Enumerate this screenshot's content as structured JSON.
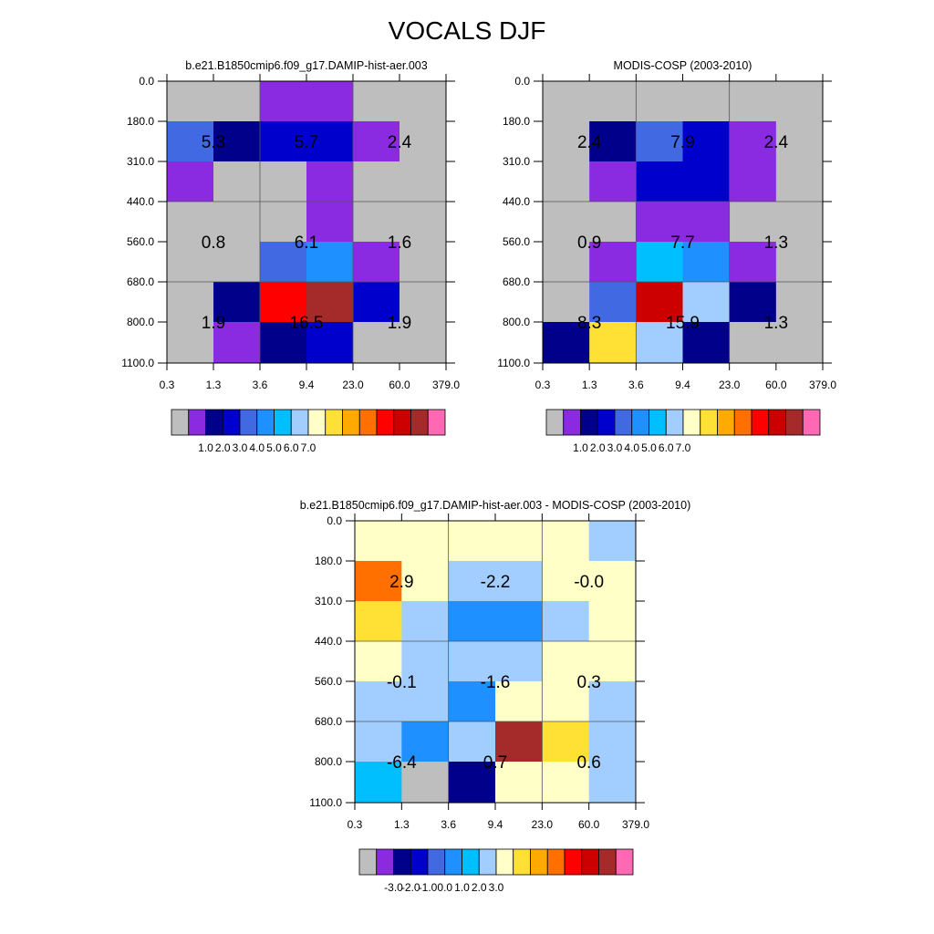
{
  "title": "VOCALS DJF",
  "chart_data": [
    {
      "type": "heatmap",
      "title": "b.e21.B1850cmip6.f09_g17.DAMIP-hist-aer.003",
      "xlabel": "",
      "ylabel": "",
      "x_ticks": [
        "0.3",
        "1.3",
        "3.6",
        "9.4",
        "23.0",
        "60.0",
        "379.0"
      ],
      "y_ticks": [
        "0.0",
        "180.0",
        "310.0",
        "440.0",
        "560.0",
        "680.0",
        "800.0",
        "1100.0"
      ],
      "cells": [
        [
          "#bebebe",
          "#bebebe",
          "#8a2be2",
          "#8a2be2",
          "#bebebe",
          "#bebebe"
        ],
        [
          "#4169e1",
          "#00008b",
          "#0000cd",
          "#0000cd",
          "#8a2be2",
          "#bebebe"
        ],
        [
          "#8a2be2",
          "#bebebe",
          "#bebebe",
          "#8a2be2",
          "#bebebe",
          "#bebebe"
        ],
        [
          "#bebebe",
          "#bebebe",
          "#bebebe",
          "#8a2be2",
          "#bebebe",
          "#bebebe"
        ],
        [
          "#bebebe",
          "#bebebe",
          "#4169e1",
          "#1e90ff",
          "#8a2be2",
          "#bebebe"
        ],
        [
          "#bebebe",
          "#00008b",
          "#ff0000",
          "#a52a2a",
          "#0000cd",
          "#bebebe"
        ],
        [
          "#bebebe",
          "#8a2be2",
          "#00008b",
          "#0000cd",
          "#bebebe",
          "#bebebe"
        ]
      ],
      "labels": [
        {
          "value": "5.3",
          "col": 0.5,
          "row": 1.5
        },
        {
          "value": "5.7",
          "col": 2.5,
          "row": 1.5
        },
        {
          "value": "2.4",
          "col": 4.5,
          "row": 1.5
        },
        {
          "value": "0.8",
          "col": 0.5,
          "row": 4
        },
        {
          "value": "6.1",
          "col": 2.5,
          "row": 4
        },
        {
          "value": "1.6",
          "col": 4.5,
          "row": 4
        },
        {
          "value": "1.9",
          "col": 0.5,
          "row": 6
        },
        {
          "value": "16.5",
          "col": 2.5,
          "row": 6
        },
        {
          "value": "1.9",
          "col": 4.5,
          "row": 6
        }
      ],
      "colorbar": {
        "colors": [
          "#bebebe",
          "#8a2be2",
          "#00008b",
          "#0000cd",
          "#4169e1",
          "#1e90ff",
          "#00bfff",
          "#a2cdff",
          "#ffffc8",
          "#ffe135",
          "#ffaa00",
          "#ff7000",
          "#ff0000",
          "#cd0000",
          "#a52a2a",
          "#ff69b4"
        ],
        "labels": [
          "1.0",
          "2.0",
          "3.0",
          "4.0",
          "5.0",
          "6.0",
          "7.0"
        ],
        "label_start_index": 2
      }
    },
    {
      "type": "heatmap",
      "title": "MODIS-COSP (2003-2010)",
      "xlabel": "",
      "ylabel": "",
      "x_ticks": [
        "0.3",
        "1.3",
        "3.6",
        "9.4",
        "23.0",
        "60.0",
        "379.0"
      ],
      "y_ticks": [
        "0.0",
        "180.0",
        "310.0",
        "440.0",
        "560.0",
        "680.0",
        "800.0",
        "1100.0"
      ],
      "cells": [
        [
          "#bebebe",
          "#bebebe",
          "#bebebe",
          "#bebebe",
          "#bebebe",
          "#bebebe"
        ],
        [
          "#bebebe",
          "#00008b",
          "#4169e1",
          "#0000cd",
          "#8a2be2",
          "#bebebe"
        ],
        [
          "#bebebe",
          "#8a2be2",
          "#0000cd",
          "#0000cd",
          "#8a2be2",
          "#bebebe"
        ],
        [
          "#bebebe",
          "#bebebe",
          "#8a2be2",
          "#8a2be2",
          "#bebebe",
          "#bebebe"
        ],
        [
          "#bebebe",
          "#8a2be2",
          "#00bfff",
          "#1e90ff",
          "#8a2be2",
          "#bebebe"
        ],
        [
          "#bebebe",
          "#4169e1",
          "#cd0000",
          "#a2cdff",
          "#00008b",
          "#bebebe"
        ],
        [
          "#00008b",
          "#ffe135",
          "#a2cdff",
          "#00008b",
          "#bebebe",
          "#bebebe"
        ]
      ],
      "labels": [
        {
          "value": "2.4",
          "col": 0.5,
          "row": 1.5
        },
        {
          "value": "7.9",
          "col": 2.5,
          "row": 1.5
        },
        {
          "value": "2.4",
          "col": 4.5,
          "row": 1.5
        },
        {
          "value": "0.9",
          "col": 0.5,
          "row": 4
        },
        {
          "value": "7.7",
          "col": 2.5,
          "row": 4
        },
        {
          "value": "1.3",
          "col": 4.5,
          "row": 4
        },
        {
          "value": "8.3",
          "col": 0.5,
          "row": 6
        },
        {
          "value": "15.9",
          "col": 2.5,
          "row": 6
        },
        {
          "value": "1.3",
          "col": 4.5,
          "row": 6
        }
      ],
      "colorbar": {
        "colors": [
          "#bebebe",
          "#8a2be2",
          "#00008b",
          "#0000cd",
          "#4169e1",
          "#1e90ff",
          "#00bfff",
          "#a2cdff",
          "#ffffc8",
          "#ffe135",
          "#ffaa00",
          "#ff7000",
          "#ff0000",
          "#cd0000",
          "#a52a2a",
          "#ff69b4"
        ],
        "labels": [
          "1.0",
          "2.0",
          "3.0",
          "4.0",
          "5.0",
          "6.0",
          "7.0"
        ],
        "label_start_index": 2
      }
    },
    {
      "type": "heatmap",
      "title": "b.e21.B1850cmip6.f09_g17.DAMIP-hist-aer.003 - MODIS-COSP (2003-2010)",
      "xlabel": "",
      "ylabel": "",
      "x_ticks": [
        "0.3",
        "1.3",
        "3.6",
        "9.4",
        "23.0",
        "60.0",
        "379.0"
      ],
      "y_ticks": [
        "0.0",
        "180.0",
        "310.0",
        "440.0",
        "560.0",
        "680.0",
        "800.0",
        "1100.0"
      ],
      "cells": [
        [
          "#ffffc8",
          "#ffffc8",
          "#ffffc8",
          "#ffffc8",
          "#ffffc8",
          "#a2cdff"
        ],
        [
          "#ff7000",
          "#ffffc8",
          "#a2cdff",
          "#a2cdff",
          "#ffffc8",
          "#ffffc8"
        ],
        [
          "#ffe135",
          "#a2cdff",
          "#1e90ff",
          "#1e90ff",
          "#a2cdff",
          "#ffffc8"
        ],
        [
          "#ffffc8",
          "#a2cdff",
          "#a2cdff",
          "#a2cdff",
          "#ffffc8",
          "#ffffc8"
        ],
        [
          "#a2cdff",
          "#a2cdff",
          "#1e90ff",
          "#ffffc8",
          "#ffffc8",
          "#a2cdff"
        ],
        [
          "#a2cdff",
          "#1e90ff",
          "#a2cdff",
          "#a52a2a",
          "#ffe135",
          "#a2cdff"
        ],
        [
          "#00bfff",
          "#bebebe",
          "#00008b",
          "#ffffc8",
          "#ffffc8",
          "#a2cdff"
        ]
      ],
      "labels": [
        {
          "value": "2.9",
          "col": 0.5,
          "row": 1.5
        },
        {
          "value": "-2.2",
          "col": 2.5,
          "row": 1.5
        },
        {
          "value": "-0.0",
          "col": 4.5,
          "row": 1.5
        },
        {
          "value": "-0.1",
          "col": 0.5,
          "row": 4
        },
        {
          "value": "-1.6",
          "col": 2.5,
          "row": 4
        },
        {
          "value": "0.3",
          "col": 4.5,
          "row": 4
        },
        {
          "value": "-6.4",
          "col": 0.5,
          "row": 6
        },
        {
          "value": "0.7",
          "col": 2.5,
          "row": 6
        },
        {
          "value": "0.6",
          "col": 4.5,
          "row": 6
        }
      ],
      "colorbar": {
        "colors": [
          "#bebebe",
          "#8a2be2",
          "#00008b",
          "#0000cd",
          "#4169e1",
          "#1e90ff",
          "#00bfff",
          "#a2cdff",
          "#ffffc8",
          "#ffe135",
          "#ffaa00",
          "#ff7000",
          "#ff0000",
          "#cd0000",
          "#a52a2a",
          "#ff69b4"
        ],
        "labels": [
          "-3.0",
          "-2.0",
          "-1.0",
          "0.0",
          "1.0",
          "2.0",
          "3.0"
        ],
        "label_start_index": 2
      }
    }
  ]
}
